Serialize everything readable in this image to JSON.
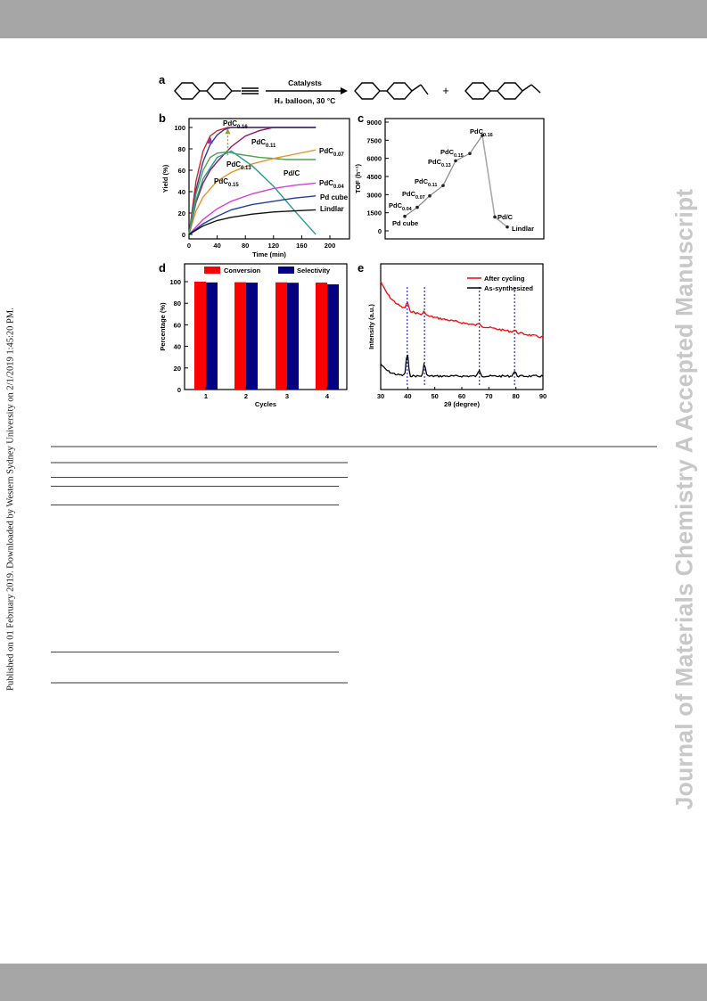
{
  "page": {
    "side_note": "Published on 01 February 2019. Downloaded by Western Sydney University on 2/1/2019 1:45:20 PM.",
    "watermark": "Journal of Materials Chemistry A Accepted Manuscript"
  },
  "figure": {
    "panel_a": {
      "letter": "a",
      "arrow_top": "Catalysts",
      "arrow_bottom": "H₂ balloon, 30 °C",
      "plus": "+"
    },
    "panels": {
      "b": "b",
      "c": "c",
      "d": "d",
      "e": "e"
    }
  },
  "chart_data": [
    {
      "panel": "b",
      "type": "line",
      "xlabel": "Time (min)",
      "ylabel": "Yield (%)",
      "xlim": [
        0,
        200
      ],
      "ylim": [
        0,
        100
      ],
      "xticks": [
        0,
        40,
        80,
        120,
        160,
        200
      ],
      "yticks": [
        0,
        20,
        40,
        60,
        80,
        100
      ],
      "colors": {
        "PdC0.16": "#d62728",
        "PdC0.11": "#8b1a5e",
        "PdC0.13": "#3b3b9a",
        "PdC0.15": "#4ea24e",
        "PdC0.07": "#e6932b",
        "Pd/C": "#2a9b8f",
        "PdC0.04": "#d43fd4",
        "Pd cube": "#1f3f9a",
        "Lindlar": "#111111"
      },
      "series": [
        {
          "name": "PdC",
          "sub": "0.16",
          "x": [
            0,
            10,
            20,
            30,
            40,
            55,
            70,
            180
          ],
          "y": [
            0,
            50,
            78,
            92,
            97,
            100,
            100,
            100
          ]
        },
        {
          "name": "PdC",
          "sub": "0.11",
          "x": [
            0,
            10,
            20,
            30,
            40,
            60,
            80,
            100,
            120,
            180
          ],
          "y": [
            0,
            30,
            48,
            60,
            68,
            82,
            92,
            97,
            100,
            100
          ]
        },
        {
          "name": "PdC",
          "sub": "0.13",
          "x": [
            0,
            10,
            20,
            30,
            40,
            50,
            60,
            180
          ],
          "y": [
            0,
            42,
            68,
            84,
            93,
            98,
            100,
            100
          ]
        },
        {
          "name": "PdC",
          "sub": "0.15",
          "x": [
            0,
            10,
            20,
            30,
            40,
            55,
            70,
            100,
            140,
            180
          ],
          "y": [
            0,
            38,
            60,
            72,
            76,
            77,
            75,
            72,
            70,
            70
          ]
        },
        {
          "name": "PdC",
          "sub": "0.07",
          "x": [
            0,
            10,
            20,
            40,
            60,
            90,
            120,
            150,
            180
          ],
          "y": [
            0,
            22,
            35,
            50,
            58,
            66,
            71,
            75,
            79
          ]
        },
        {
          "name": "Pd/C",
          "sub": "",
          "x": [
            0,
            10,
            20,
            40,
            60,
            90,
            120,
            150,
            180
          ],
          "y": [
            0,
            32,
            52,
            72,
            78,
            64,
            45,
            22,
            0
          ]
        },
        {
          "name": "PdC",
          "sub": "0.04",
          "x": [
            0,
            20,
            40,
            60,
            90,
            120,
            150,
            180
          ],
          "y": [
            0,
            14,
            24,
            31,
            38,
            43,
            46,
            48
          ]
        },
        {
          "name": "Pd cube",
          "sub": "",
          "x": [
            0,
            20,
            40,
            60,
            90,
            120,
            150,
            180
          ],
          "y": [
            0,
            10,
            17,
            23,
            28,
            31,
            34,
            36
          ]
        },
        {
          "name": "Lindlar",
          "sub": "",
          "x": [
            0,
            20,
            40,
            60,
            90,
            120,
            150,
            180
          ],
          "y": [
            0,
            8,
            13,
            16,
            19,
            21,
            22,
            23
          ]
        }
      ],
      "arrow_at_x": 55
    },
    {
      "panel": "c",
      "type": "line",
      "ylabel": "TOF (h⁻¹)",
      "ylim": [
        0,
        9000
      ],
      "yticks": [
        0,
        1500,
        3000,
        4500,
        6000,
        7500,
        9000
      ],
      "categories": [
        "Pd cube",
        "PdC0.04",
        "PdC0.07",
        "PdC0.11",
        "PdC0.13",
        "PdC0.15",
        "PdC0.16",
        "Pd/C",
        "Lindlar"
      ],
      "label_parts": [
        [
          "Pd cube",
          ""
        ],
        [
          "PdC",
          "0.04"
        ],
        [
          "PdC",
          "0.07"
        ],
        [
          "PdC",
          "0.11"
        ],
        [
          "PdC",
          "0.13"
        ],
        [
          "PdC",
          "0.15"
        ],
        [
          "PdC",
          "0.16"
        ],
        [
          "Pd/C",
          ""
        ],
        [
          "Lindlar",
          ""
        ]
      ],
      "values": [
        1200,
        1950,
        2900,
        3750,
        5800,
        6400,
        7900,
        1150,
        320
      ],
      "segment_colors": {
        "first": "#333333",
        "second": "#aaaaaa"
      }
    },
    {
      "panel": "d",
      "type": "bar",
      "xlabel": "Cycles",
      "ylabel": "Percentage (%)",
      "ylim": [
        0,
        100
      ],
      "yticks": [
        0,
        20,
        40,
        60,
        80,
        100
      ],
      "categories": [
        "1",
        "2",
        "3",
        "4"
      ],
      "series": [
        {
          "name": "Conversion",
          "color": "#ff0000",
          "values": [
            100,
            99.5,
            99.4,
            99.2
          ]
        },
        {
          "name": "Selectivity",
          "color": "#000080",
          "values": [
            99.3,
            99.1,
            99.0,
            97.5
          ]
        }
      ]
    },
    {
      "panel": "e",
      "type": "line",
      "xlabel": "2θ (degree)",
      "ylabel": "Intensity (a.u.)",
      "xlim": [
        30,
        90
      ],
      "xticks": [
        30,
        40,
        50,
        60,
        70,
        80,
        90
      ],
      "reference_lines": [
        39.8,
        46.2,
        66.5,
        79.5
      ],
      "series": [
        {
          "name": "After cycling",
          "color": "#ff0000"
        },
        {
          "name": "As-synthesized",
          "color": "#000000"
        }
      ]
    }
  ]
}
